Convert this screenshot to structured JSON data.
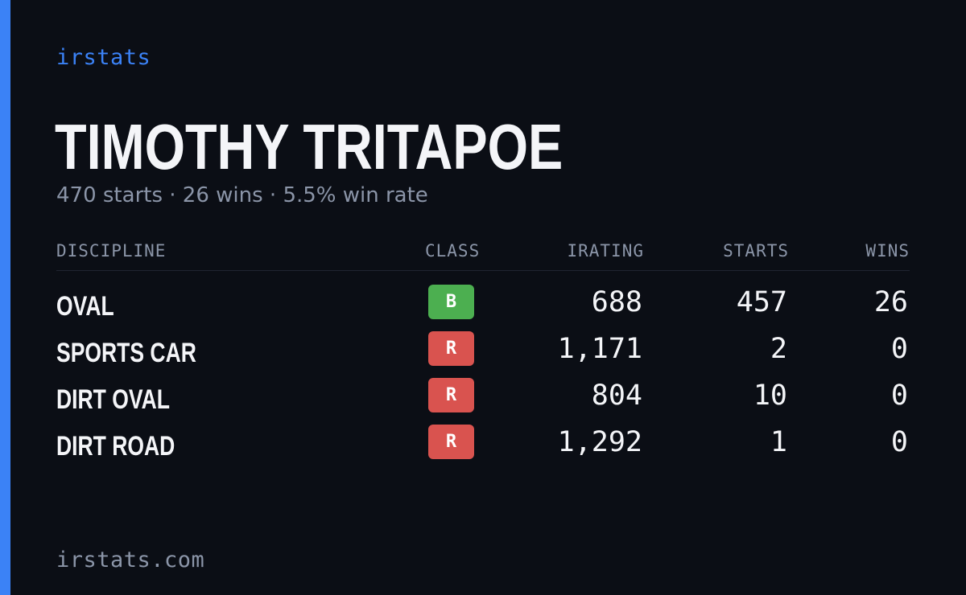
{
  "brand": "irstats",
  "driver": {
    "name": "TIMOTHY TRITAPOE",
    "summary": "470 starts · 26 wins · 5.5% win rate"
  },
  "table": {
    "headers": {
      "discipline": "DISCIPLINE",
      "class": "CLASS",
      "irating": "IRATING",
      "starts": "STARTS",
      "wins": "WINS"
    },
    "rows": [
      {
        "discipline": "OVAL",
        "class": "B",
        "class_color": "#4caf50",
        "irating": "688",
        "starts": "457",
        "wins": "26"
      },
      {
        "discipline": "SPORTS CAR",
        "class": "R",
        "class_color": "#d9534f",
        "irating": "1,171",
        "starts": "2",
        "wins": "0"
      },
      {
        "discipline": "DIRT OVAL",
        "class": "R",
        "class_color": "#d9534f",
        "irating": "804",
        "starts": "10",
        "wins": "0"
      },
      {
        "discipline": "DIRT ROAD",
        "class": "R",
        "class_color": "#d9534f",
        "irating": "1,292",
        "starts": "1",
        "wins": "0"
      }
    ]
  },
  "footer": "irstats.com",
  "colors": {
    "accent": "#3b82f6",
    "background": "#0b0e15",
    "muted_text": "#8b95a8",
    "text": "#f4f5f8"
  }
}
